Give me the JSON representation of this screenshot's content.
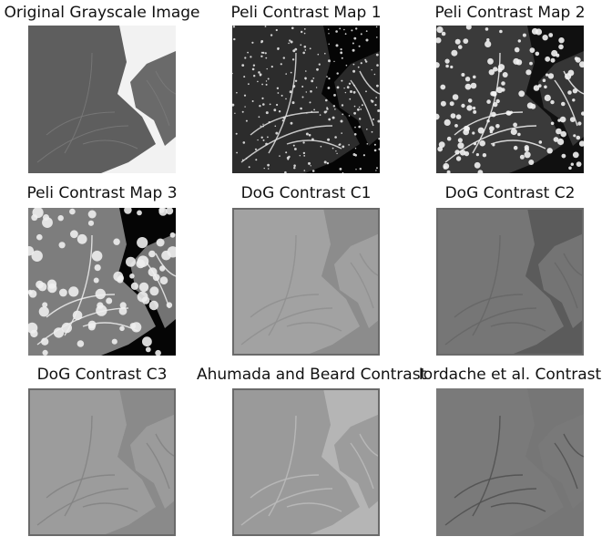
{
  "panels": [
    {
      "title": "Original Grayscale Image",
      "palette": {
        "bg": "#f2f2f2",
        "leaf": "#5e5e5e",
        "vein": "#7a7a7a"
      }
    },
    {
      "title": "Peli Contrast Map 1",
      "palette": {
        "bg": "#050505",
        "leaf": "#2c2c2c",
        "vein": "#e4e4e4"
      }
    },
    {
      "title": "Peli Contrast Map 2",
      "palette": {
        "bg": "#101010",
        "leaf": "#3a3a3a",
        "vein": "#f3f3f3"
      }
    },
    {
      "title": "Peli Contrast Map 3",
      "palette": {
        "bg": "#050505",
        "leaf": "#7d7d7d",
        "vein": "#eeeeee"
      }
    },
    {
      "title": "DoG Contrast C1",
      "palette": {
        "bg": "#8c8c8c",
        "leaf": "#a2a2a2",
        "vein": "#8f8f8f"
      }
    },
    {
      "title": "DoG Contrast C2",
      "palette": {
        "bg": "#5b5b5b",
        "leaf": "#767676",
        "vein": "#666666"
      }
    },
    {
      "title": "DoG Contrast C3",
      "palette": {
        "bg": "#8a8a8a",
        "leaf": "#9c9c9c",
        "vein": "#828282"
      }
    },
    {
      "title": "Ahumada and Beard Contrast",
      "palette": {
        "bg": "#b5b5b5",
        "leaf": "#9a9a9a",
        "vein": "#bcbcbc"
      }
    },
    {
      "title": "Iordache et al. Contrast",
      "palette": {
        "bg": "#767676",
        "leaf": "#7a7a7a",
        "vein": "#4f4f4f"
      }
    }
  ]
}
